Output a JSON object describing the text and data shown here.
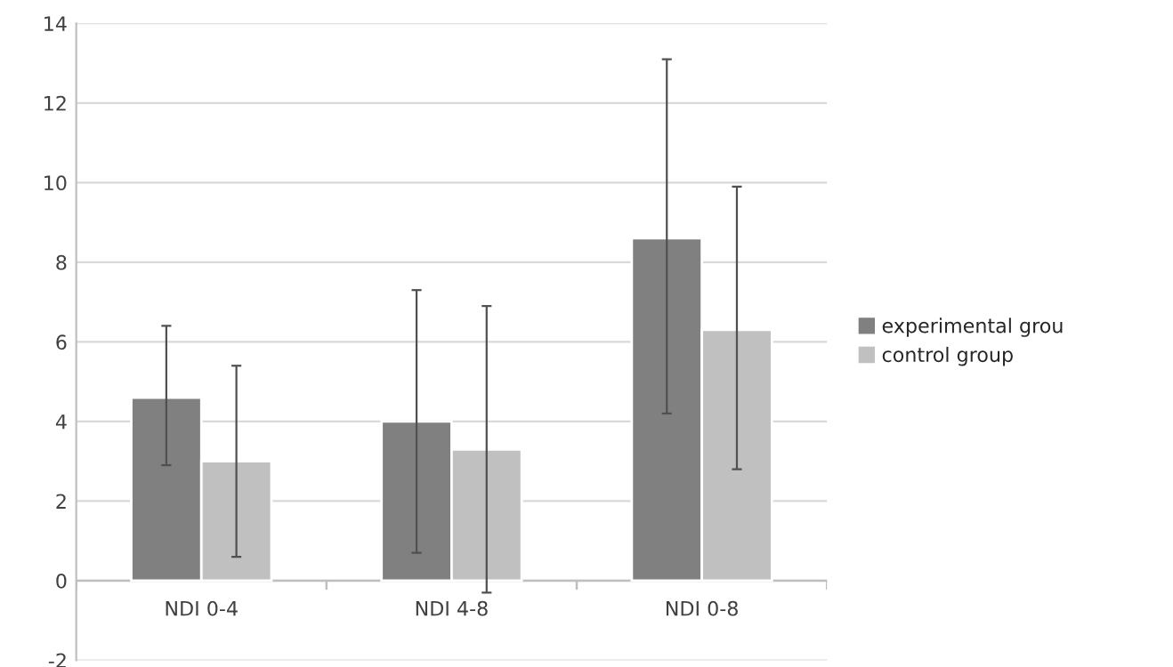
{
  "chart_data": {
    "type": "bar",
    "categories": [
      "NDI 0-4",
      "NDI 4-8",
      "NDI 0-8"
    ],
    "series": [
      {
        "name": "experimental grou",
        "color": "#808080",
        "values": [
          4.6,
          4.0,
          8.6
        ],
        "errors": [
          [
            2.9,
            6.4
          ],
          [
            0.7,
            7.3
          ],
          [
            4.2,
            13.1
          ]
        ]
      },
      {
        "name": "control group",
        "color": "#c0c0c0",
        "values": [
          3.0,
          3.3,
          6.3
        ],
        "errors": [
          [
            0.6,
            5.4
          ],
          [
            -0.3,
            6.9
          ],
          [
            2.8,
            9.9
          ]
        ]
      }
    ],
    "ylim": [
      -2,
      14
    ],
    "yticks": [
      -2,
      0,
      2,
      4,
      6,
      8,
      10,
      12,
      14
    ],
    "grid": "y",
    "legend": "right"
  }
}
